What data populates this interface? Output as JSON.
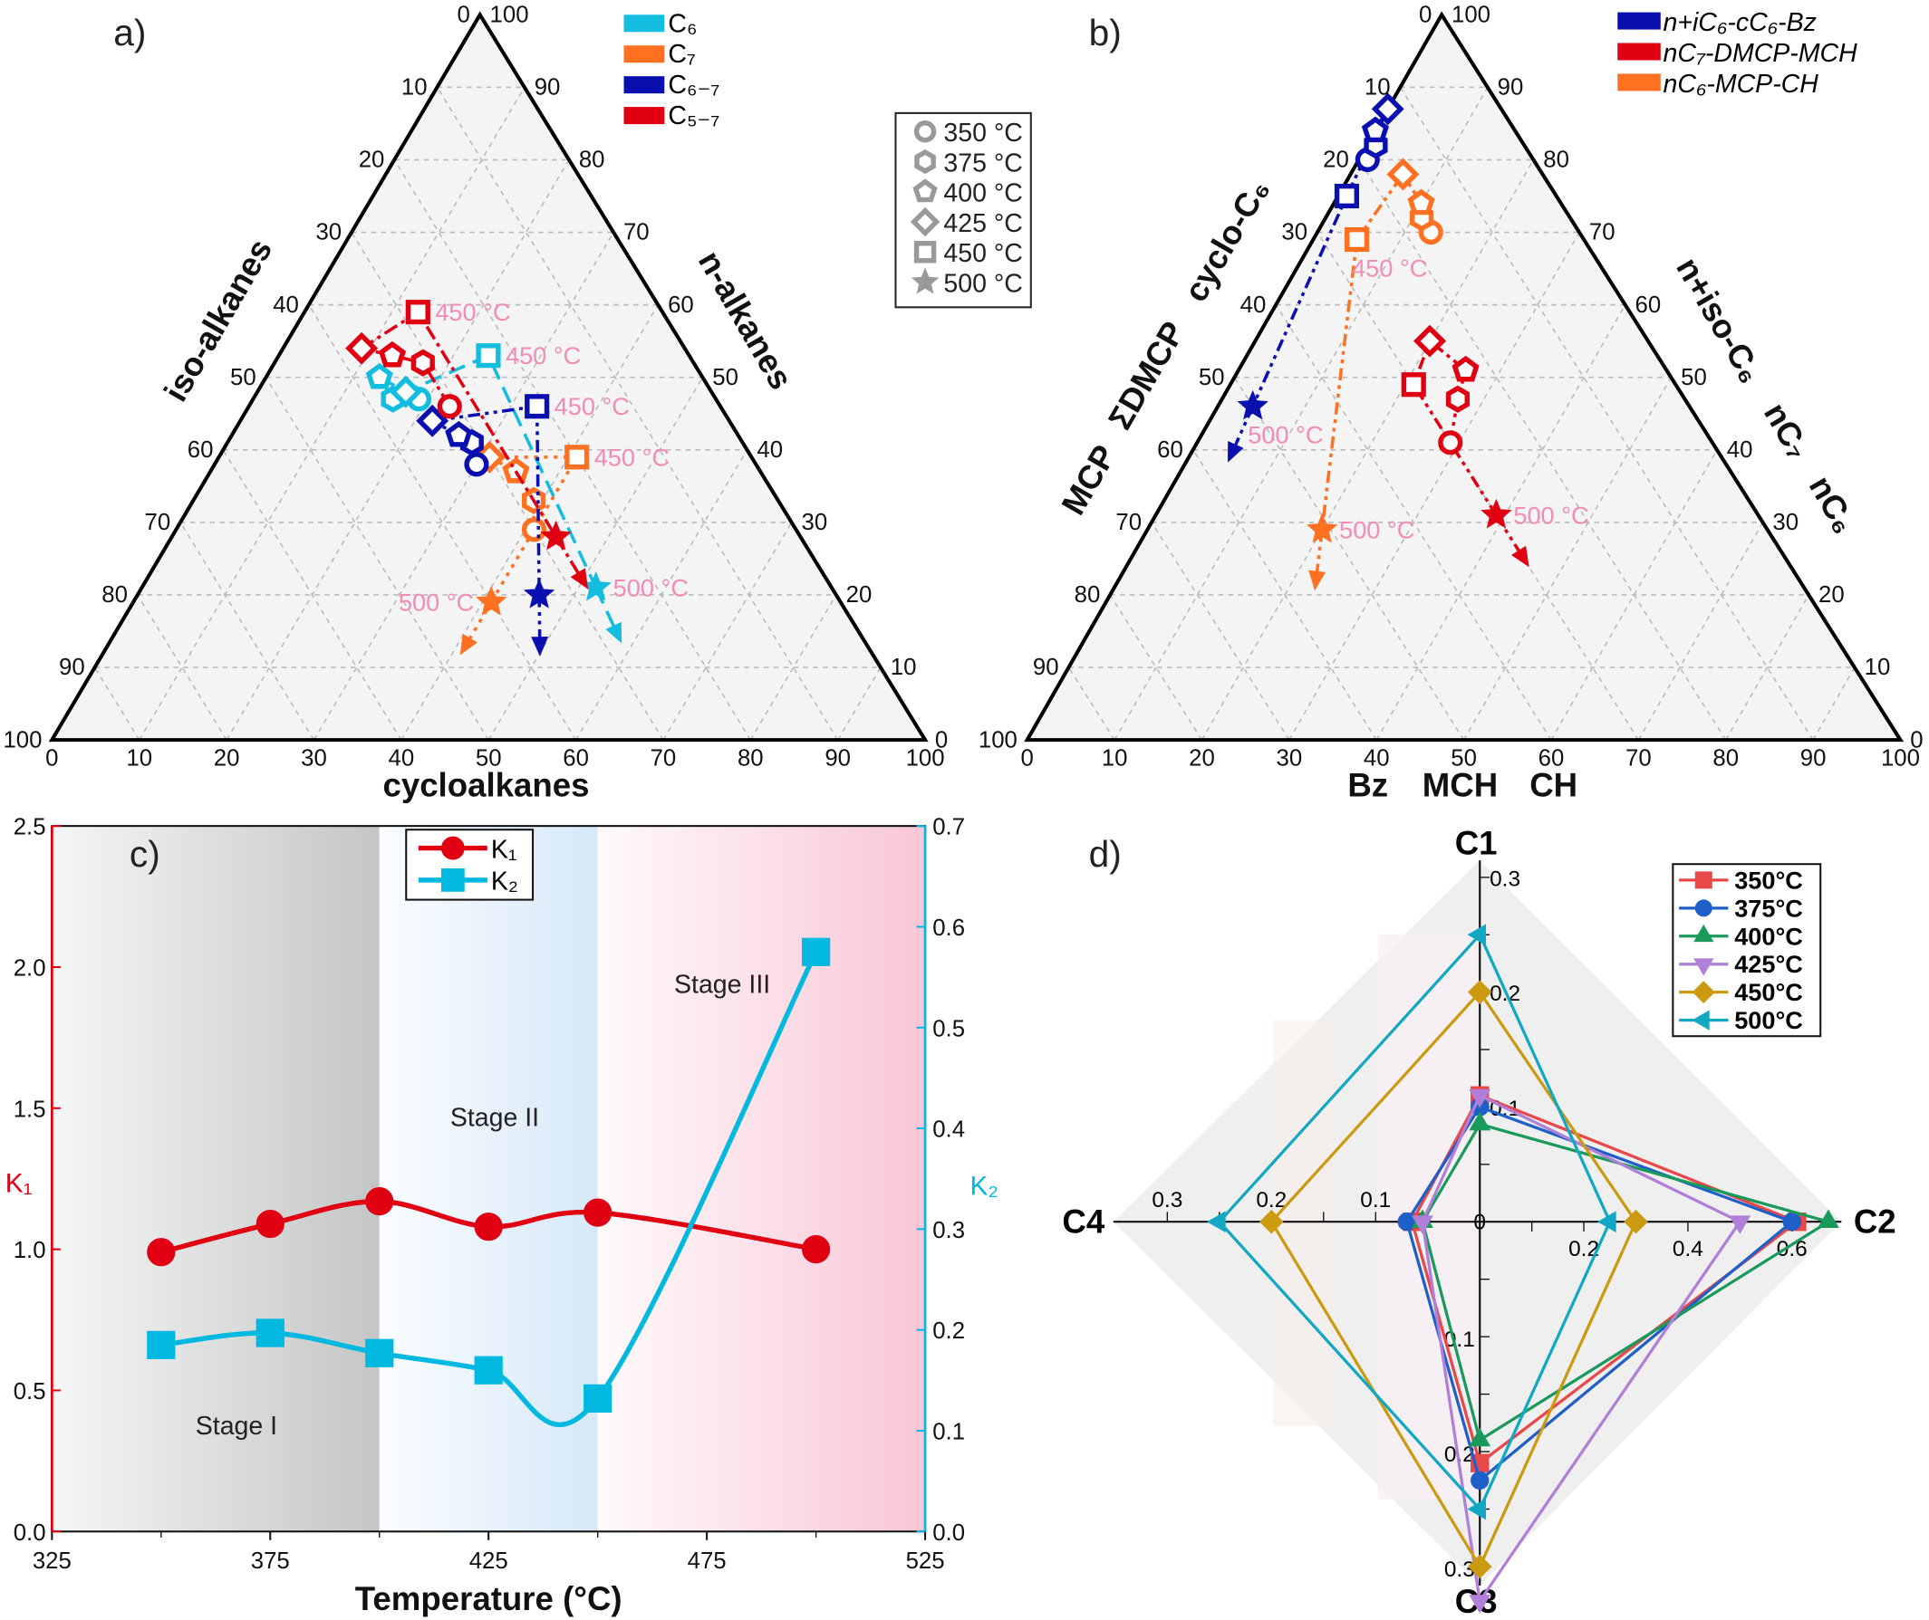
{
  "chart_data": [
    {
      "type": "ternary",
      "panel_label": "a)",
      "axes": {
        "left": "iso-alkanes",
        "right": "n-alkanes",
        "bottom": "cycloalkanes"
      },
      "ticks": [
        0,
        10,
        20,
        30,
        40,
        50,
        60,
        70,
        80,
        90,
        100
      ],
      "grid": true,
      "series_legend": [
        {
          "name": "C₆",
          "color": "#12bde0"
        },
        {
          "name": "C₇",
          "color": "#ff7020"
        },
        {
          "name": "C₆₋₇",
          "color": "#0a10b0"
        },
        {
          "name": "C₅₋₇",
          "color": "#e00012"
        }
      ],
      "marker_legend": [
        {
          "temp": 350,
          "label": "350 °C",
          "marker": "circle"
        },
        {
          "temp": 375,
          "label": "375 °C",
          "marker": "hexagon"
        },
        {
          "temp": 400,
          "label": "400 °C",
          "marker": "pentagon"
        },
        {
          "temp": 425,
          "label": "425 °C",
          "marker": "diamond"
        },
        {
          "temp": 450,
          "label": "450 °C",
          "marker": "square"
        },
        {
          "temp": 500,
          "label": "500 °C",
          "marker": "star"
        }
      ],
      "series": [
        {
          "name": "C₆",
          "color": "#12bde0",
          "line_style": "dashed",
          "points": [
            {
              "temp": 350,
              "left_axis": 34,
              "bottom_axis": 19,
              "right_axis": 47
            },
            {
              "temp": 375,
              "left_axis": 37,
              "bottom_axis": 16,
              "right_axis": 47
            },
            {
              "temp": 400,
              "left_axis": 37,
              "bottom_axis": 13,
              "right_axis": 50
            },
            {
              "temp": 425,
              "left_axis": 35,
              "bottom_axis": 17,
              "right_axis": 48
            },
            {
              "temp": 450,
              "left_axis": 23,
              "bottom_axis": 24,
              "right_axis": 53
            },
            {
              "temp": 500,
              "left_axis": 27,
              "bottom_axis": 52,
              "right_axis": 21
            }
          ]
        },
        {
          "name": "C₇",
          "color": "#ff7020",
          "line_style": "dotted",
          "points": [
            {
              "temp": 350,
              "left_axis": 30,
              "bottom_axis": 41,
              "right_axis": 29
            },
            {
              "temp": 375,
              "left_axis": 28,
              "bottom_axis": 39,
              "right_axis": 33
            },
            {
              "temp": 400,
              "left_axis": 28,
              "bottom_axis": 35,
              "right_axis": 37
            },
            {
              "temp": 425,
              "left_axis": 30,
              "bottom_axis": 31,
              "right_axis": 39
            },
            {
              "temp": 450,
              "left_axis": 20,
              "bottom_axis": 41,
              "right_axis": 39
            },
            {
              "temp": 500,
              "left_axis": 40,
              "bottom_axis": 41,
              "right_axis": 19
            }
          ]
        },
        {
          "name": "C₆₋₇",
          "color": "#0a10b0",
          "line_style": "dash-dot-dot",
          "points": [
            {
              "temp": 350,
              "left_axis": 32,
              "bottom_axis": 30,
              "right_axis": 38
            },
            {
              "temp": 375,
              "left_axis": 31,
              "bottom_axis": 28,
              "right_axis": 41
            },
            {
              "temp": 400,
              "left_axis": 32,
              "bottom_axis": 26,
              "right_axis": 42
            },
            {
              "temp": 425,
              "left_axis": 34,
              "bottom_axis": 22,
              "right_axis": 44
            },
            {
              "temp": 450,
              "left_axis": 21,
              "bottom_axis": 33,
              "right_axis": 46
            },
            {
              "temp": 500,
              "left_axis": 34,
              "bottom_axis": 46,
              "right_axis": 20
            }
          ]
        },
        {
          "name": "C₅₋₇",
          "color": "#e00012",
          "line_style": "dash-dot",
          "points": [
            {
              "temp": 350,
              "left_axis": 31,
              "bottom_axis": 23,
              "right_axis": 46
            },
            {
              "temp": 375,
              "left_axis": 31,
              "bottom_axis": 17,
              "right_axis": 52
            },
            {
              "temp": 400,
              "left_axis": 34,
              "bottom_axis": 13,
              "right_axis": 53
            },
            {
              "temp": 425,
              "left_axis": 37,
              "bottom_axis": 9,
              "right_axis": 54
            },
            {
              "temp": 450,
              "left_axis": 28,
              "bottom_axis": 13,
              "right_axis": 59
            },
            {
              "temp": 500,
              "left_axis": 28,
              "bottom_axis": 44,
              "right_axis": 28
            }
          ]
        }
      ],
      "annotations": [
        {
          "series": 3,
          "temp": 450,
          "text": "450 °C",
          "side": "right"
        },
        {
          "series": 0,
          "temp": 450,
          "text": "450 °C",
          "side": "right"
        },
        {
          "series": 2,
          "temp": 450,
          "text": "450 °C",
          "side": "right"
        },
        {
          "series": 1,
          "temp": 450,
          "text": "450 °C",
          "side": "right"
        },
        {
          "series": 0,
          "temp": 500,
          "text": "500 °C",
          "side": "right"
        },
        {
          "series": 1,
          "temp": 500,
          "text": "500 °C",
          "side": "left"
        }
      ]
    },
    {
      "type": "ternary",
      "panel_label": "b)",
      "axes": {
        "left": [
          {
            "text": "MCP",
            "color": "#ff7020"
          },
          {
            "text": "ΣDMCP",
            "color": "#e00012"
          },
          {
            "text": "cyclo-C₆",
            "color": "#0a10b0"
          }
        ],
        "right": [
          {
            "text": "n+iso-C₆",
            "color": "#0a10b0"
          },
          {
            "text": "nC₇",
            "color": "#e00012"
          },
          {
            "text": "nC₆",
            "color": "#ff7020"
          }
        ],
        "bottom": [
          {
            "text": "Bz",
            "color": "#0a10b0"
          },
          {
            "text": "MCH",
            "color": "#e00012"
          },
          {
            "text": "CH",
            "color": "#ff7020"
          }
        ]
      },
      "ticks": [
        0,
        10,
        20,
        30,
        40,
        50,
        60,
        70,
        80,
        90,
        100
      ],
      "grid": true,
      "series_legend": [
        {
          "name": "n+iC₆-cC₆-Bz",
          "color": "#0a10b0"
        },
        {
          "name": "nC₇-DMCP-MCH",
          "color": "#e00012"
        },
        {
          "name": "nC₆-MCP-CH",
          "color": "#ff7020"
        }
      ],
      "series": [
        {
          "name": "n+iC₆-cC₆-Bz",
          "color": "#0a10b0",
          "line_style": "dash-dot-dot",
          "points": [
            {
              "temp": 350,
              "left_axis": 19,
              "bottom_axis": 1,
              "right_axis": 80
            },
            {
              "temp": 375,
              "left_axis": 17,
              "bottom_axis": 1,
              "right_axis": 82
            },
            {
              "temp": 400,
              "left_axis": 16,
              "bottom_axis": 0,
              "right_axis": 84
            },
            {
              "temp": 425,
              "left_axis": 13,
              "bottom_axis": 0,
              "right_axis": 87
            },
            {
              "temp": 450,
              "left_axis": 24,
              "bottom_axis": 1,
              "right_axis": 75
            },
            {
              "temp": 500,
              "left_axis": 50,
              "bottom_axis": 4,
              "right_axis": 46
            }
          ]
        },
        {
          "name": "nC₇-DMCP-MCH",
          "color": "#e00012",
          "line_style": "dash-dot-dot",
          "points": [
            {
              "temp": 350,
              "left_axis": 30,
              "bottom_axis": 29,
              "right_axis": 41
            },
            {
              "temp": 375,
              "left_axis": 26,
              "bottom_axis": 27,
              "right_axis": 47
            },
            {
              "temp": 400,
              "left_axis": 23,
              "bottom_axis": 26,
              "right_axis": 51
            },
            {
              "temp": 425,
              "left_axis": 25,
              "bottom_axis": 20,
              "right_axis": 55
            },
            {
              "temp": 450,
              "left_axis": 30,
              "bottom_axis": 21,
              "right_axis": 49
            },
            {
              "temp": 500,
              "left_axis": 30,
              "bottom_axis": 39,
              "right_axis": 31
            }
          ]
        },
        {
          "name": "nC₆-MCP-CH",
          "color": "#ff7020",
          "line_style": "dash-dot-dot",
          "points": [
            {
              "temp": 350,
              "left_axis": 17,
              "bottom_axis": 13,
              "right_axis": 70
            },
            {
              "temp": 375,
              "left_axis": 17,
              "bottom_axis": 11,
              "right_axis": 72
            },
            {
              "temp": 400,
              "left_axis": 16,
              "bottom_axis": 10,
              "right_axis": 74
            },
            {
              "temp": 425,
              "left_axis": 16,
              "bottom_axis": 6,
              "right_axis": 78
            },
            {
              "temp": 450,
              "left_axis": 26,
              "bottom_axis": 5,
              "right_axis": 69
            },
            {
              "temp": 500,
              "left_axis": 51,
              "bottom_axis": 20,
              "right_axis": 29
            }
          ]
        }
      ],
      "annotations": [
        {
          "series": 2,
          "temp": 450,
          "text": "450 °C",
          "side": "below"
        },
        {
          "series": 0,
          "temp": 500,
          "text": "500 °C",
          "side": "below"
        },
        {
          "series": 2,
          "temp": 500,
          "text": "500 °C",
          "side": "right"
        },
        {
          "series": 1,
          "temp": 500,
          "text": "500 °C",
          "side": "right"
        }
      ]
    },
    {
      "type": "line",
      "panel_label": "c)",
      "xlabel": "Temperature (°C)",
      "ylabel": "K₁",
      "y2label": "K₂",
      "xlim": [
        325,
        525
      ],
      "ylim": [
        0,
        2.5
      ],
      "y2lim": [
        0,
        0.7
      ],
      "xticks": [
        325,
        375,
        425,
        475,
        525
      ],
      "yticks": [
        "0.0",
        "0.5",
        "1.0",
        "1.5",
        "2.0",
        "2.5"
      ],
      "y2ticks": [
        "0.0",
        "0.1",
        "0.2",
        "0.3",
        "0.4",
        "0.5",
        "0.6",
        "0.7"
      ],
      "ycolor": "#e00012",
      "y2color": "#00b8e0",
      "legend_position": "top-center",
      "stages": [
        {
          "label": "Stage I",
          "range": [
            325,
            400
          ],
          "color": "#c4c6c6"
        },
        {
          "label": "Stage II",
          "range": [
            400,
            450
          ],
          "color": "#d6e8f8"
        },
        {
          "label": "Stage III",
          "range": [
            450,
            525
          ],
          "color": "#f8c6d6"
        }
      ],
      "x": [
        350,
        375,
        400,
        425,
        450,
        500
      ],
      "series": [
        {
          "name": "K₁",
          "axis": "left",
          "color": "#e00012",
          "marker": "circle",
          "values": [
            0.99,
            1.09,
            1.17,
            1.08,
            1.13,
            1.0
          ]
        },
        {
          "name": "K₂",
          "axis": "right",
          "color": "#00b8e0",
          "marker": "square",
          "values": [
            0.185,
            0.197,
            0.177,
            0.16,
            0.132,
            0.575
          ]
        }
      ]
    },
    {
      "type": "radar",
      "panel_label": "d)",
      "axes": [
        "C1",
        "C2",
        "C3",
        "C4"
      ],
      "axis_ticks": {
        "C1": [
          "0.1",
          "0.2",
          "0.3"
        ],
        "C2": [
          "0.2",
          "0.4",
          "0.6"
        ],
        "C3": [
          "0.1",
          "0.2",
          "0.3"
        ],
        "C4": [
          "0.1",
          "0.2",
          "0.3"
        ]
      },
      "origin_label": "0",
      "legend_position": "top-right",
      "series": [
        {
          "name": "350°C",
          "color": "#e84848",
          "marker": "square",
          "values": [
            0.11,
            0.61,
            0.21,
            0.065
          ]
        },
        {
          "name": "375°C",
          "color": "#1f5fc8",
          "marker": "circle",
          "values": [
            0.1,
            0.6,
            0.225,
            0.07
          ]
        },
        {
          "name": "400°C",
          "color": "#1a9a5a",
          "marker": "triangle-up",
          "values": [
            0.085,
            0.67,
            0.19,
            0.055
          ]
        },
        {
          "name": "425°C",
          "color": "#b07fd8",
          "marker": "triangle-down",
          "values": [
            0.11,
            0.5,
            0.33,
            0.055
          ]
        },
        {
          "name": "450°C",
          "color": "#cc9a10",
          "marker": "diamond",
          "values": [
            0.2,
            0.3,
            0.3,
            0.2
          ]
        },
        {
          "name": "500°C",
          "color": "#12a8c4",
          "marker": "triangle-left",
          "values": [
            0.25,
            0.25,
            0.25,
            0.25
          ]
        }
      ]
    }
  ]
}
